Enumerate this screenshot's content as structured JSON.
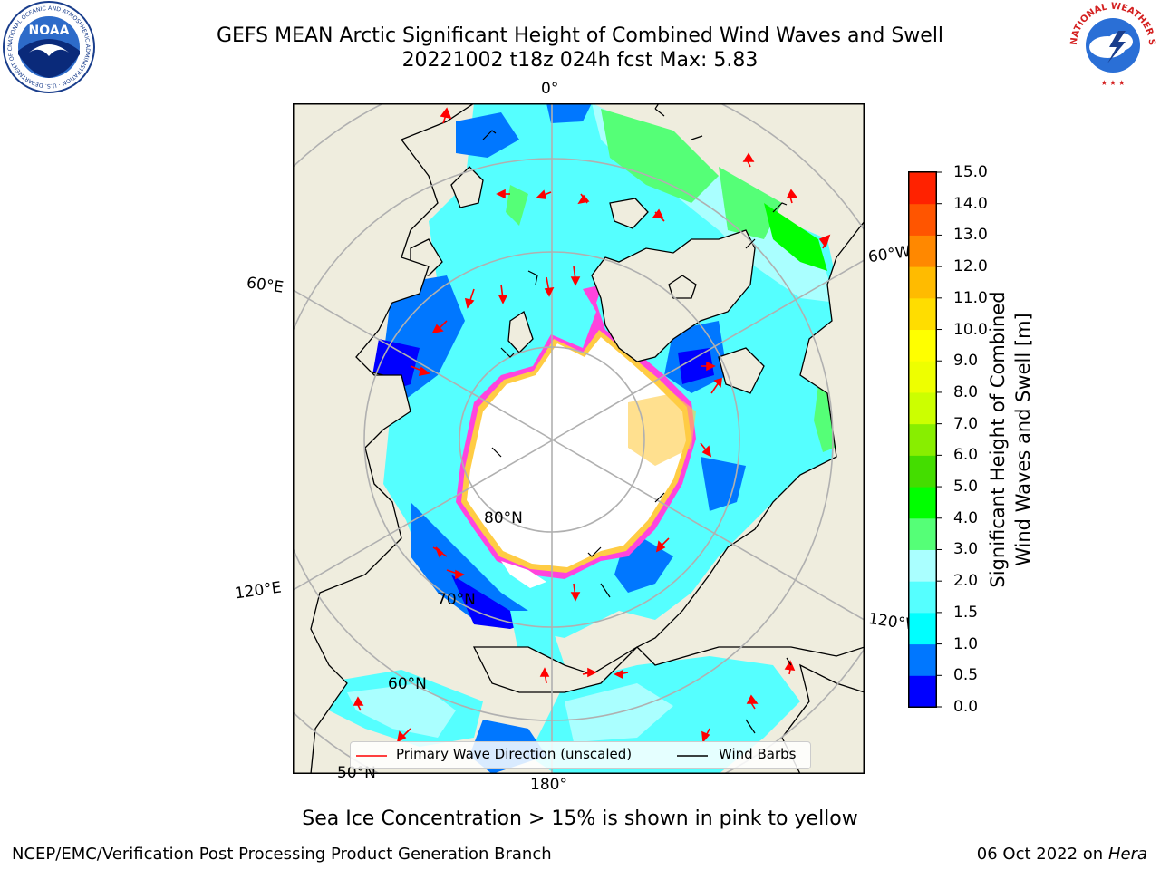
{
  "header": {
    "title_line1": "GEFS MEAN Arctic Significant Height of Combined Wind Waves and Swell",
    "title_line2": "20221002 t18z 024h fcst   Max: 5.83"
  },
  "logos": {
    "noaa_text": "NOAA",
    "noaa_ring_text": "NATIONAL OCEANIC AND ATMOSPHERIC ADMINISTRATION · U.S. DEPARTMENT OF COMMERCE",
    "nws_ring_text": "NATIONAL WEATHER SERVICE"
  },
  "map": {
    "longitude_labels": {
      "top": "0°",
      "left_upper": "60°E",
      "left_lower": "120°E",
      "bottom": "180°",
      "right_upper": "60°W",
      "right_lower": "120°W"
    },
    "latitude_labels": {
      "lat80": "80°N",
      "lat70": "70°N",
      "lat60": "60°N",
      "lat50": "50°N"
    },
    "colors": {
      "land": "#efedde",
      "grid": "#b0b0b0",
      "ice": "#ffffff",
      "ice_edge_pink": "#ff44dd",
      "ice_edge_yellow": "#ffcc44",
      "arrow": "#ff0000"
    }
  },
  "legend": {
    "primary_wave": "Primary Wave Direction (unscaled)",
    "wind_barbs": "Wind Barbs"
  },
  "colorbar": {
    "title_line1": "Significant Height of Combined",
    "title_line2": "Wind Waves and Swell [m]",
    "ticks": [
      "15.0",
      "14.0",
      "13.0",
      "12.0",
      "11.0",
      "10.0",
      "9.0",
      "8.0",
      "7.0",
      "6.0",
      "5.0",
      "4.0",
      "3.0",
      "2.0",
      "1.5",
      "1.0",
      "0.5",
      "0.0"
    ],
    "colors": [
      "#0000ff",
      "#0077ff",
      "#00ffff",
      "#55ffff",
      "#aaffff",
      "#55ff77",
      "#00ff00",
      "#44dd00",
      "#88ee00",
      "#ccff00",
      "#eeff00",
      "#ffff00",
      "#ffdd00",
      "#ffbb00",
      "#ff8800",
      "#ff5500",
      "#ff2200"
    ]
  },
  "caption": "Sea Ice Concentration > 15% is shown in pink to yellow",
  "footer": {
    "left": "NCEP/EMC/Verification Post Processing Product Generation Branch",
    "right_date": "06 Oct 2022 on ",
    "right_host": "Hera"
  }
}
